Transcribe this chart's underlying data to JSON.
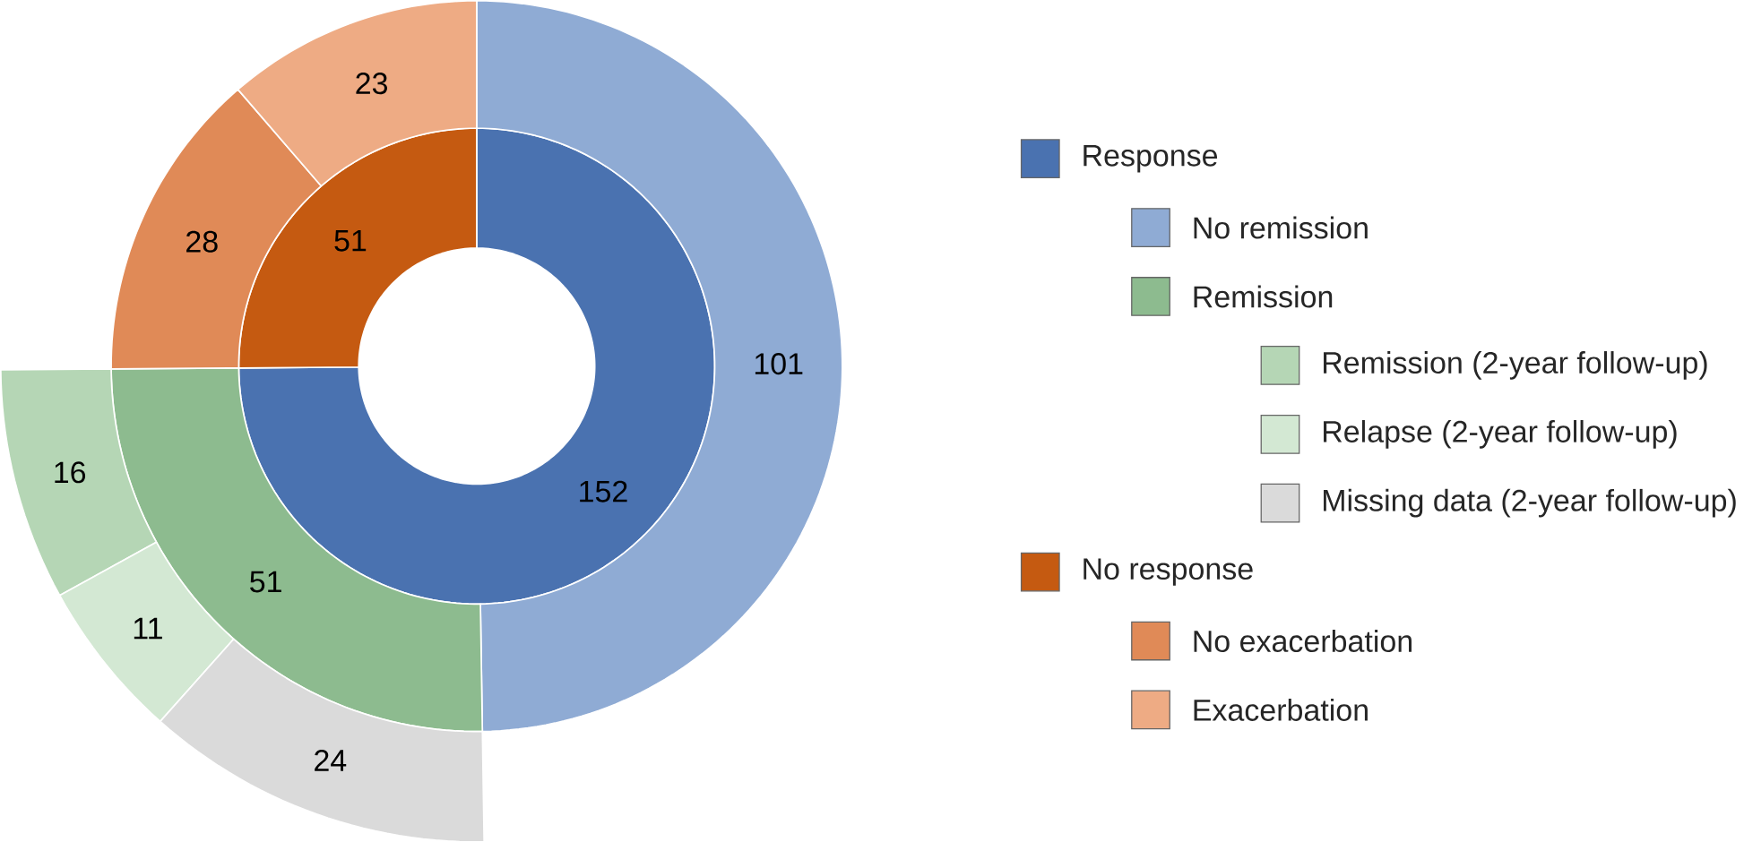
{
  "chart_data": {
    "type": "donut",
    "categories": [
      "Response",
      "No remission",
      "Remission",
      "Remission (2-year follow-up)",
      "Relapse (2-year follow-up)",
      "Missing data (2-year follow-up)",
      "No response",
      "No exacerbation",
      "Exacerbation"
    ],
    "colors": [
      "#4a72b0",
      "#8fabd4",
      "#8dbb8f",
      "#b5d6b5",
      "#d3e8d3",
      "#dadada",
      "#c55a11",
      "#e08a57",
      "#eeab84"
    ],
    "series": [
      {
        "values": [
          152,
          null,
          null,
          null,
          null,
          null,
          51,
          null,
          null
        ]
      },
      {
        "values": [
          null,
          101,
          51,
          null,
          null,
          null,
          null,
          28,
          23
        ]
      },
      {
        "values": [
          null,
          null,
          null,
          16,
          11,
          24,
          null,
          null,
          null
        ]
      }
    ],
    "data_labels": true,
    "legend": "right"
  }
}
